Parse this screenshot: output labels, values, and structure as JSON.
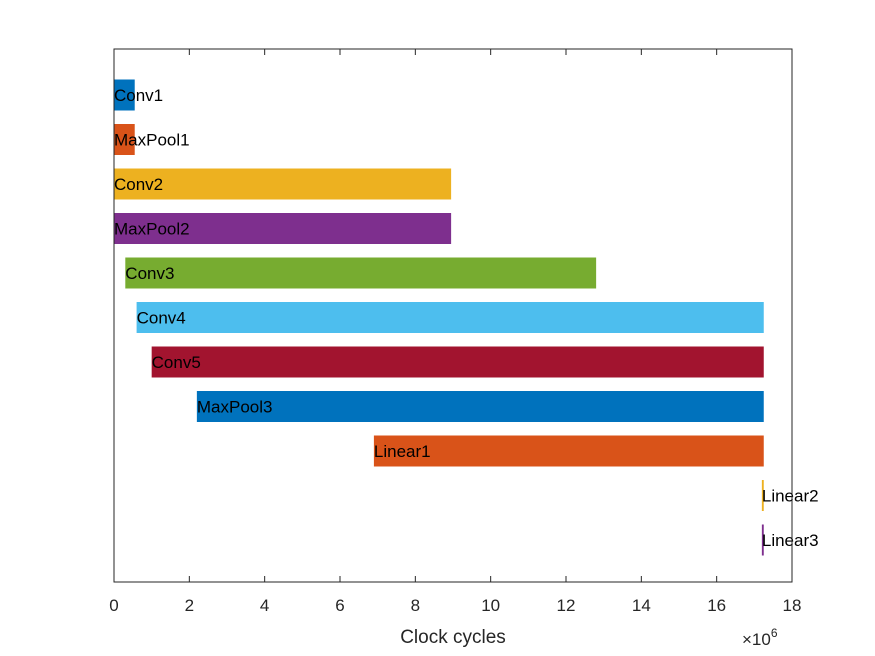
{
  "chart_data": {
    "type": "bar",
    "orientation": "horizontal",
    "subtype": "floating",
    "xlabel": "Clock cycles",
    "x_exponent_label": "×10",
    "x_exponent_power": "6",
    "x_scale": 1000000,
    "xlim": [
      0,
      18
    ],
    "xticks": [
      "0",
      "2",
      "4",
      "6",
      "8",
      "10",
      "12",
      "14",
      "16",
      "18"
    ],
    "grid": false,
    "bars": [
      {
        "label": "Conv1",
        "start": 0.0,
        "end": 0.55,
        "color": "#0072BD"
      },
      {
        "label": "MaxPool1",
        "start": 0.0,
        "end": 0.55,
        "color": "#D95319"
      },
      {
        "label": "Conv2",
        "start": 0.0,
        "end": 8.95,
        "color": "#EDB120"
      },
      {
        "label": "MaxPool2",
        "start": 0.0,
        "end": 8.95,
        "color": "#7E2F8E"
      },
      {
        "label": "Conv3",
        "start": 0.3,
        "end": 12.8,
        "color": "#77AC30"
      },
      {
        "label": "Conv4",
        "start": 0.6,
        "end": 17.25,
        "color": "#4DBEEE"
      },
      {
        "label": "Conv5",
        "start": 1.0,
        "end": 17.25,
        "color": "#A2142F"
      },
      {
        "label": "MaxPool3",
        "start": 2.2,
        "end": 17.25,
        "color": "#0072BD"
      },
      {
        "label": "Linear1",
        "start": 6.9,
        "end": 17.25,
        "color": "#D95319"
      },
      {
        "label": "Linear2",
        "start": 17.2,
        "end": 17.25,
        "color": "#EDB120"
      },
      {
        "label": "Linear3",
        "start": 17.2,
        "end": 17.25,
        "color": "#7E2F8E"
      }
    ]
  }
}
